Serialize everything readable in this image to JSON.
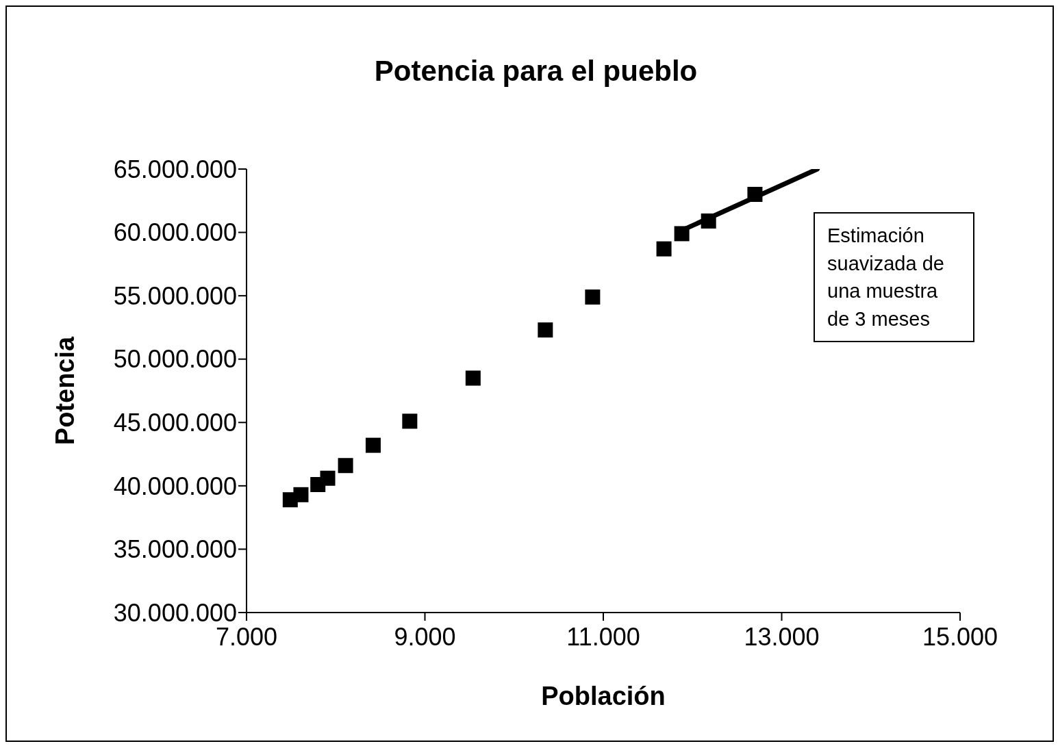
{
  "chart_data": {
    "type": "scatter",
    "title": "Potencia para el pueblo",
    "xlabel": "Población",
    "ylabel": "Potencia",
    "annotations": [
      "Estimación suavizada de una muestra de 3 meses"
    ],
    "series": [
      {
        "color": "#000000",
        "marker": "square",
        "x": [
          7490,
          7610,
          7800,
          7910,
          8110,
          8420,
          8830,
          9540,
          10350,
          10880,
          11680,
          11880,
          12180,
          12700
        ],
        "values": [
          38900000,
          39300000,
          40100000,
          40600000,
          41600000,
          43200000,
          45100000,
          48500000,
          52300000,
          54900000,
          58700000,
          59900000,
          60900000,
          63000000
        ]
      },
      {
        "type": "line",
        "color": "#000000",
        "x": [
          11830,
          13400
        ],
        "values": [
          60000000,
          65000000
        ]
      }
    ],
    "xlim": [
      7000,
      15000
    ],
    "xticks": [
      {
        "value": 7000,
        "label": "7.000"
      },
      {
        "value": 9000,
        "label": "9.000"
      },
      {
        "value": 11000,
        "label": "11.000"
      },
      {
        "value": 13000,
        "label": "13.000"
      },
      {
        "value": 15000,
        "label": "15.000"
      }
    ],
    "ylim": [
      30000000,
      65000000
    ],
    "yticks": [
      {
        "value": 30000000,
        "label": "30.000.000"
      },
      {
        "value": 35000000,
        "label": "35.000.000"
      },
      {
        "value": 40000000,
        "label": "40.000.000"
      },
      {
        "value": 45000000,
        "label": "45.000.000"
      },
      {
        "value": 50000000,
        "label": "50.000.000"
      },
      {
        "value": 55000000,
        "label": "55.000.000"
      },
      {
        "value": 60000000,
        "label": "60.000.000"
      },
      {
        "value": 65000000,
        "label": "65.000.000"
      }
    ],
    "grid": false,
    "legend": false
  }
}
